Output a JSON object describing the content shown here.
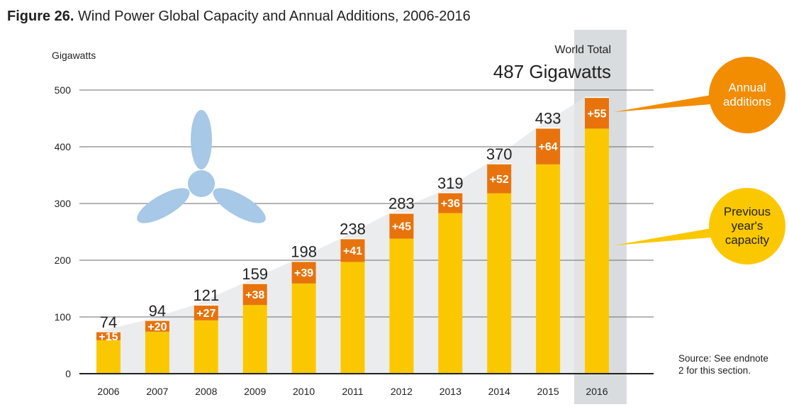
{
  "figure": {
    "number_label": "Figure 26.",
    "title": "Wind Power Global Capacity and Annual Additions, 2006-2016"
  },
  "world_total": {
    "label": "World Total",
    "value": "487 Gigawatts"
  },
  "callouts": {
    "annual": "Annual additions",
    "previous": "Previous year's capacity"
  },
  "source_note": {
    "line1": "Source: See endnote",
    "line2": "2 for this section."
  },
  "colors": {
    "previous_capacity": "#fbc800",
    "annual_additions": "#e8730c",
    "background_area": "#e4e6e7",
    "highlight_column": "#d9dcde",
    "turbine_icon": "#a7c8e6"
  },
  "icon": "wind-turbine-icon",
  "chart_data": {
    "type": "bar",
    "stacked": true,
    "ylabel": "Gigawatts",
    "ylim": [
      0,
      500
    ],
    "yticks": [
      0,
      100,
      200,
      300,
      400,
      500
    ],
    "grid": true,
    "categories": [
      "2006",
      "2007",
      "2008",
      "2009",
      "2010",
      "2011",
      "2012",
      "2013",
      "2014",
      "2015",
      "2016"
    ],
    "totals": [
      74,
      94,
      121,
      159,
      198,
      238,
      283,
      319,
      370,
      433,
      487
    ],
    "series": [
      {
        "name": "Previous year's capacity",
        "values": [
          59,
          74,
          94,
          121,
          159,
          197,
          238,
          283,
          318,
          369,
          432
        ]
      },
      {
        "name": "Annual additions",
        "values": [
          15,
          20,
          27,
          38,
          39,
          41,
          45,
          36,
          52,
          64,
          55
        ]
      }
    ],
    "addition_labels": [
      "+15",
      "+20",
      "+27",
      "+38",
      "+39",
      "+41",
      "+45",
      "+36",
      "+52",
      "+64",
      "+55"
    ],
    "highlight_category": "2016"
  }
}
